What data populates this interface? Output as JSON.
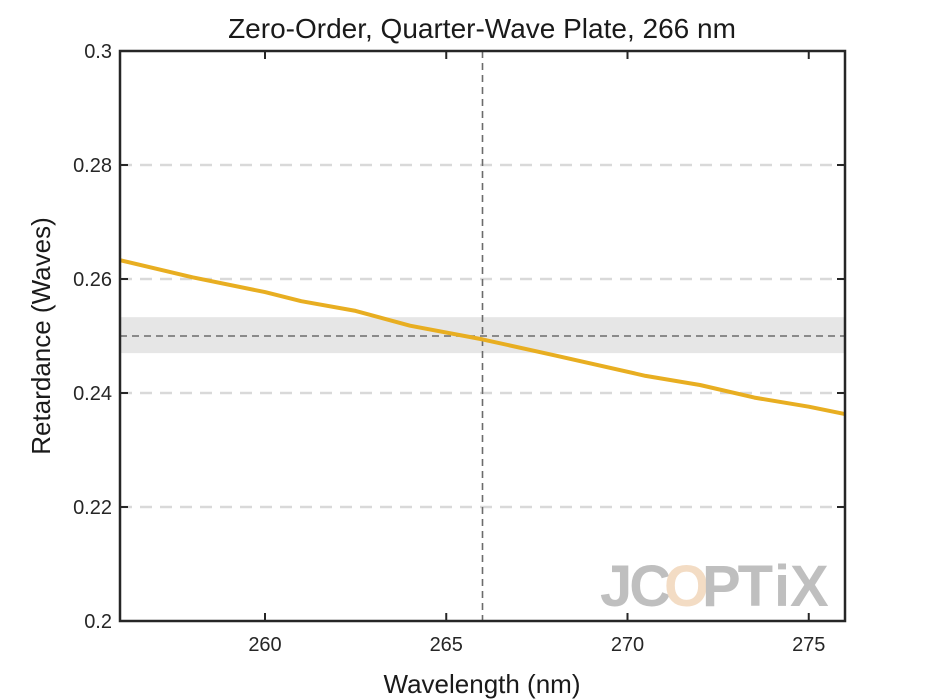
{
  "chart_data": {
    "type": "line",
    "title": "Zero-Order, Quarter-Wave Plate, 266 nm",
    "xlabel": "Wavelength (nm)",
    "ylabel": "Retardance (Waves)",
    "xlim": [
      256,
      276
    ],
    "ylim": [
      0.2,
      0.3
    ],
    "xticks": [
      260,
      265,
      270,
      275
    ],
    "yticks": [
      0.2,
      0.22,
      0.24,
      0.26,
      0.28,
      0.3
    ],
    "ytick_labels": [
      "0.2",
      "0.22",
      "0.24",
      "0.26",
      "0.28",
      "0.3"
    ],
    "grid": "horizontal dashed",
    "target_wavelength": 266,
    "target_retardance": 0.25,
    "tolerance_band": [
      0.247,
      0.2533
    ],
    "line_color": "#E8AE21",
    "series": [
      {
        "x": [
          256,
          258,
          260,
          261,
          262.5,
          264,
          266,
          268,
          270.5,
          272,
          273.5,
          275,
          276
        ],
        "values": [
          0.2633,
          0.2603,
          0.2577,
          0.2561,
          0.2544,
          0.2518,
          0.2494,
          0.2466,
          0.243,
          0.2414,
          0.2392,
          0.2376,
          0.2363
        ]
      }
    ],
    "watermark": "JCOPTiX"
  }
}
